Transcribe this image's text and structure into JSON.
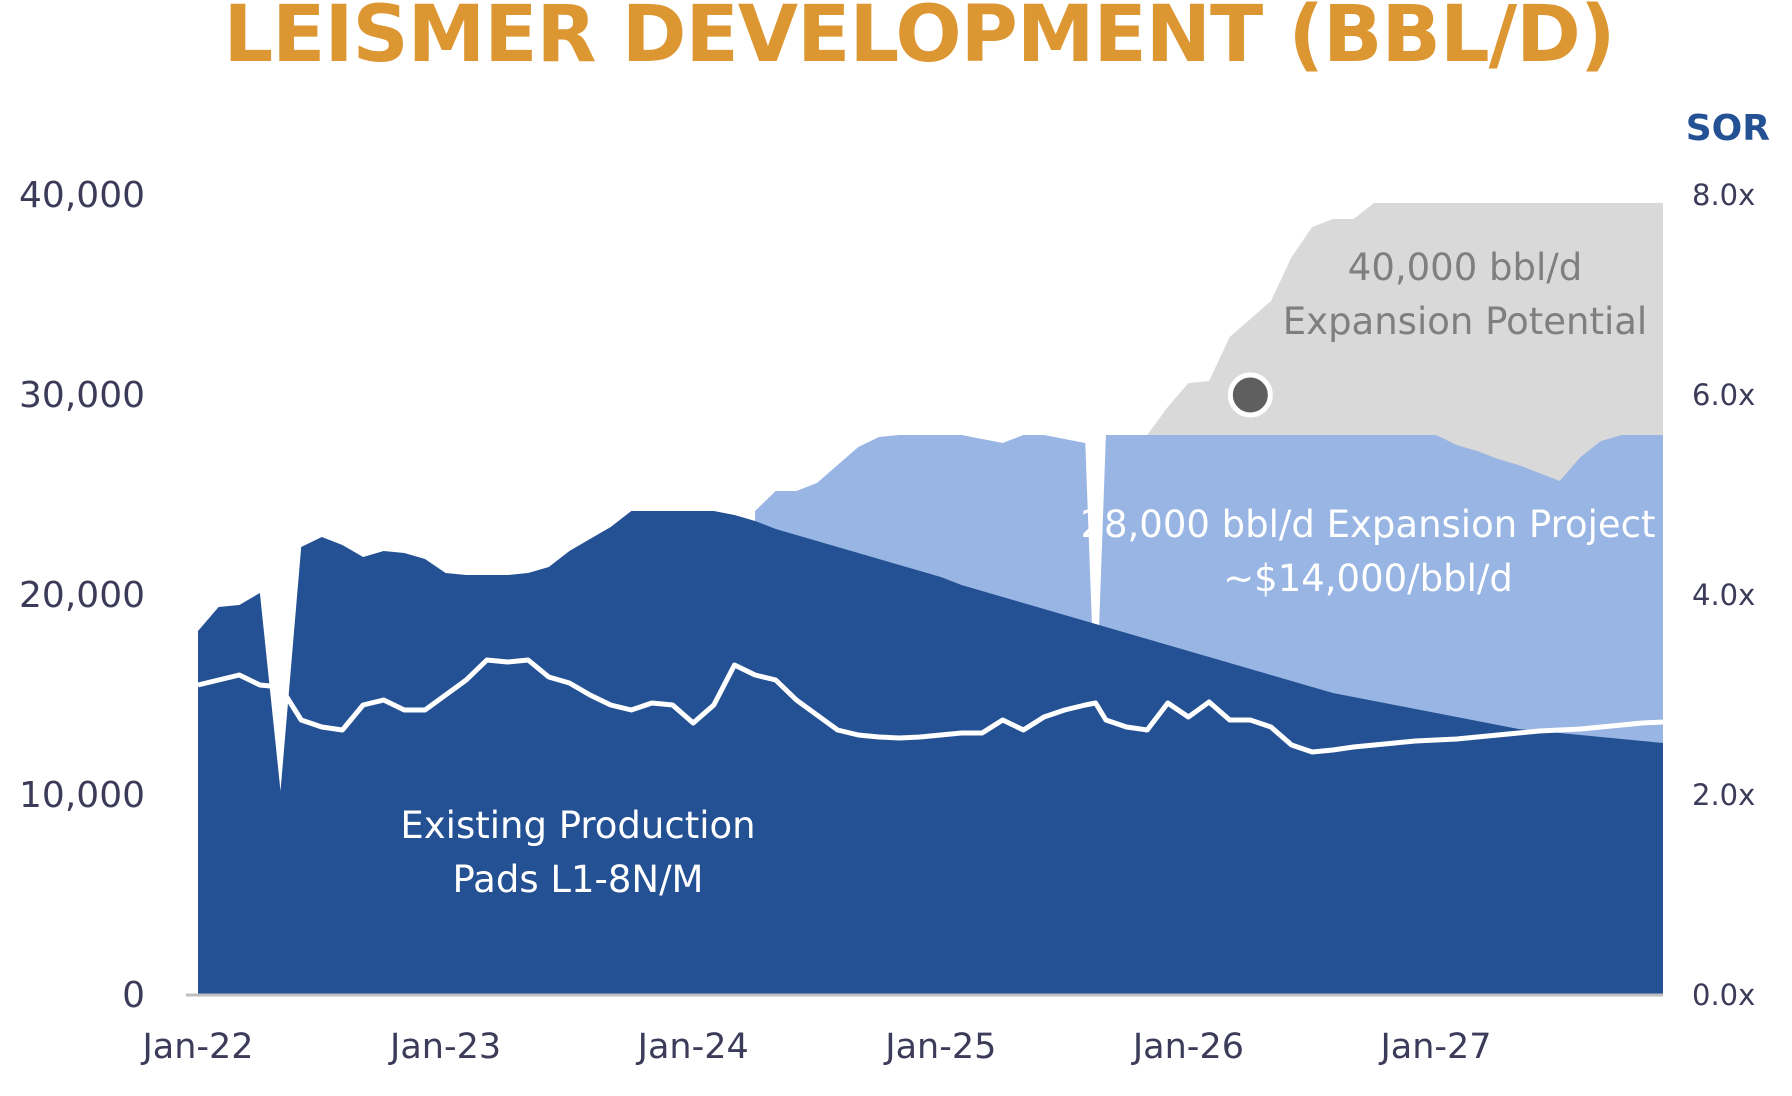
{
  "title": "LEISMER DEVELOPMENT (BBL/D)",
  "colors": {
    "title": "#dc9632",
    "existing": "#245194",
    "expansion": "#98b5e3",
    "potential": "#d9d9d9",
    "sor_line": "#ffffff",
    "sor_label": "#245194",
    "axis": "#bfbfbf",
    "marker": "#5f5f5f"
  },
  "chart_data": {
    "type": "area",
    "title": "LEISMER DEVELOPMENT (BBL/D)",
    "y_left": {
      "min": 0,
      "max": 40000,
      "ticks": [
        "0",
        "10,000",
        "20,000",
        "30,000",
        "40,000"
      ],
      "tick_values": [
        0,
        10000,
        20000,
        30000,
        40000
      ]
    },
    "y_right": {
      "label": "SOR",
      "min": 0,
      "max": 8,
      "ticks": [
        "0.0x",
        "2.0x",
        "4.0x",
        "6.0x",
        "8.0x"
      ],
      "tick_values": [
        0,
        2,
        4,
        6,
        8
      ]
    },
    "x": {
      "unit": "months since Jan-22",
      "min": 0,
      "max": 71,
      "ticks": [
        "Jan-22",
        "Jan-23",
        "Jan-24",
        "Jan-25",
        "Jan-26",
        "Jan-27"
      ],
      "tick_values": [
        0,
        12,
        24,
        36,
        48,
        60
      ]
    },
    "series": [
      {
        "name": "Existing Production Pads L1-8N/M",
        "type": "area",
        "axis": "left",
        "points": [
          [
            0,
            18200
          ],
          [
            1,
            19400
          ],
          [
            2,
            19500
          ],
          [
            3,
            20100
          ],
          [
            4,
            10200
          ],
          [
            5,
            22400
          ],
          [
            6,
            22900
          ],
          [
            7,
            22500
          ],
          [
            8,
            21900
          ],
          [
            9,
            22200
          ],
          [
            10,
            22100
          ],
          [
            11,
            21800
          ],
          [
            12,
            21100
          ],
          [
            13,
            21000
          ],
          [
            14,
            21000
          ],
          [
            15,
            21000
          ],
          [
            16,
            21100
          ],
          [
            17,
            21400
          ],
          [
            18,
            22200
          ],
          [
            19,
            22800
          ],
          [
            20,
            23400
          ],
          [
            21,
            24200
          ],
          [
            22,
            24200
          ],
          [
            23,
            24200
          ],
          [
            24,
            24200
          ],
          [
            25,
            24200
          ],
          [
            26,
            24000
          ],
          [
            27,
            23700
          ],
          [
            28,
            23300
          ],
          [
            29,
            23000
          ],
          [
            30,
            22700
          ],
          [
            31,
            22400
          ],
          [
            32,
            22100
          ],
          [
            33,
            21800
          ],
          [
            34,
            21500
          ],
          [
            35,
            21200
          ],
          [
            36,
            20900
          ],
          [
            37,
            20500
          ],
          [
            38,
            20200
          ],
          [
            39,
            19900
          ],
          [
            40,
            19600
          ],
          [
            41,
            19300
          ],
          [
            42,
            19000
          ],
          [
            43,
            18700
          ],
          [
            44,
            18400
          ],
          [
            45,
            18100
          ],
          [
            46,
            17800
          ],
          [
            47,
            17500
          ],
          [
            48,
            17200
          ],
          [
            49,
            16900
          ],
          [
            50,
            16600
          ],
          [
            51,
            16300
          ],
          [
            52,
            16000
          ],
          [
            53,
            15700
          ],
          [
            54,
            15400
          ],
          [
            55,
            15100
          ],
          [
            56,
            14900
          ],
          [
            57,
            14700
          ],
          [
            58,
            14500
          ],
          [
            59,
            14300
          ],
          [
            60,
            14100
          ],
          [
            61,
            13900
          ],
          [
            62,
            13700
          ],
          [
            63,
            13500
          ],
          [
            64,
            13300
          ],
          [
            65,
            13200
          ],
          [
            66,
            13100
          ],
          [
            67,
            13000
          ],
          [
            68,
            12900
          ],
          [
            69,
            12800
          ],
          [
            70,
            12700
          ],
          [
            71,
            12600
          ]
        ]
      },
      {
        "name": "28,000 bbl/d Expansion Project",
        "type": "area",
        "axis": "left",
        "points": [
          [
            27,
            24200
          ],
          [
            28,
            25200
          ],
          [
            29,
            25200
          ],
          [
            30,
            25600
          ],
          [
            31,
            26500
          ],
          [
            32,
            27400
          ],
          [
            33,
            27900
          ],
          [
            34,
            28000
          ],
          [
            35,
            28000
          ],
          [
            36,
            28000
          ],
          [
            37,
            28000
          ],
          [
            38,
            27800
          ],
          [
            39,
            27600
          ],
          [
            40,
            28000
          ],
          [
            41,
            28000
          ],
          [
            42,
            27800
          ],
          [
            43,
            27600
          ],
          [
            43.5,
            13500
          ],
          [
            44,
            28000
          ],
          [
            45,
            28000
          ],
          [
            46,
            28000
          ],
          [
            47,
            28000
          ],
          [
            48,
            28000
          ],
          [
            49,
            28000
          ],
          [
            50,
            28000
          ],
          [
            51,
            28000
          ],
          [
            52,
            28000
          ],
          [
            53,
            28000
          ],
          [
            54,
            28000
          ],
          [
            55,
            28000
          ],
          [
            56,
            28000
          ],
          [
            57,
            28000
          ],
          [
            58,
            28000
          ],
          [
            59,
            28000
          ],
          [
            60,
            28000
          ],
          [
            61,
            27500
          ],
          [
            62,
            27200
          ],
          [
            63,
            26800
          ],
          [
            64,
            26500
          ],
          [
            65,
            26100
          ],
          [
            66,
            25700
          ],
          [
            67,
            26900
          ],
          [
            68,
            27700
          ],
          [
            69,
            28000
          ],
          [
            70,
            28000
          ],
          [
            71,
            28000
          ]
        ]
      },
      {
        "name": "40,000 bbl/d Expansion Potential",
        "type": "area",
        "axis": "left",
        "points": [
          [
            46,
            28000
          ],
          [
            47,
            29400
          ],
          [
            48,
            30600
          ],
          [
            49,
            30700
          ],
          [
            50,
            32900
          ],
          [
            51,
            33800
          ],
          [
            52,
            34700
          ],
          [
            53,
            36900
          ],
          [
            54,
            38400
          ],
          [
            55,
            38800
          ],
          [
            56,
            38800
          ],
          [
            57,
            39600
          ],
          [
            58,
            39600
          ],
          [
            59,
            39600
          ],
          [
            60,
            39600
          ],
          [
            61,
            39600
          ],
          [
            62,
            39600
          ],
          [
            63,
            39600
          ],
          [
            64,
            39600
          ],
          [
            65,
            39600
          ],
          [
            66,
            39600
          ],
          [
            67,
            39600
          ],
          [
            68,
            39600
          ],
          [
            69,
            39600
          ],
          [
            70,
            39600
          ],
          [
            71,
            39600
          ]
        ]
      },
      {
        "name": "SOR",
        "type": "line",
        "axis": "right",
        "points": [
          [
            0,
            3.1
          ],
          [
            1,
            3.15
          ],
          [
            2,
            3.2
          ],
          [
            3,
            3.1
          ],
          [
            4,
            3.08
          ],
          [
            5,
            2.75
          ],
          [
            6,
            2.68
          ],
          [
            7,
            2.65
          ],
          [
            8,
            2.9
          ],
          [
            9,
            2.95
          ],
          [
            10,
            2.85
          ],
          [
            11,
            2.85
          ],
          [
            12,
            3.0
          ],
          [
            13,
            3.15
          ],
          [
            14,
            3.35
          ],
          [
            15,
            3.33
          ],
          [
            16,
            3.35
          ],
          [
            17,
            3.18
          ],
          [
            18,
            3.12
          ],
          [
            19,
            3.0
          ],
          [
            20,
            2.9
          ],
          [
            21,
            2.85
          ],
          [
            22,
            2.92
          ],
          [
            23,
            2.9
          ],
          [
            24,
            2.72
          ],
          [
            25,
            2.9
          ],
          [
            26,
            3.3
          ],
          [
            27,
            3.2
          ],
          [
            28,
            3.15
          ],
          [
            29,
            2.95
          ],
          [
            30,
            2.8
          ],
          [
            31,
            2.65
          ],
          [
            32,
            2.6
          ],
          [
            33,
            2.58
          ],
          [
            34,
            2.57
          ],
          [
            35,
            2.58
          ],
          [
            36,
            2.6
          ],
          [
            37,
            2.62
          ],
          [
            38,
            2.62
          ],
          [
            39,
            2.75
          ],
          [
            40,
            2.65
          ],
          [
            41,
            2.78
          ],
          [
            42,
            2.85
          ],
          [
            43,
            2.9
          ],
          [
            43.5,
            2.92
          ],
          [
            44,
            2.75
          ],
          [
            45,
            2.68
          ],
          [
            46,
            2.65
          ],
          [
            47,
            2.92
          ],
          [
            48,
            2.78
          ],
          [
            49,
            2.93
          ],
          [
            50,
            2.75
          ],
          [
            51,
            2.75
          ],
          [
            52,
            2.68
          ],
          [
            53,
            2.5
          ],
          [
            54,
            2.43
          ],
          [
            55,
            2.45
          ],
          [
            56,
            2.48
          ],
          [
            57,
            2.5
          ],
          [
            58,
            2.52
          ],
          [
            59,
            2.54
          ],
          [
            60,
            2.55
          ],
          [
            61,
            2.56
          ],
          [
            62,
            2.58
          ],
          [
            63,
            2.6
          ],
          [
            64,
            2.62
          ],
          [
            65,
            2.64
          ],
          [
            66,
            2.65
          ],
          [
            67,
            2.66
          ],
          [
            68,
            2.68
          ],
          [
            69,
            2.7
          ],
          [
            70,
            2.72
          ],
          [
            71,
            2.73
          ]
        ]
      }
    ],
    "annotations": {
      "existing": [
        "Existing Production",
        "Pads L1-8N/M"
      ],
      "expansion": [
        "28,000 bbl/d Expansion Project",
        "~$14,000/bbl/d"
      ],
      "potential": [
        "40,000 bbl/d",
        "Expansion Potential"
      ]
    },
    "marker": {
      "x": 51,
      "sor": 6.0
    }
  }
}
